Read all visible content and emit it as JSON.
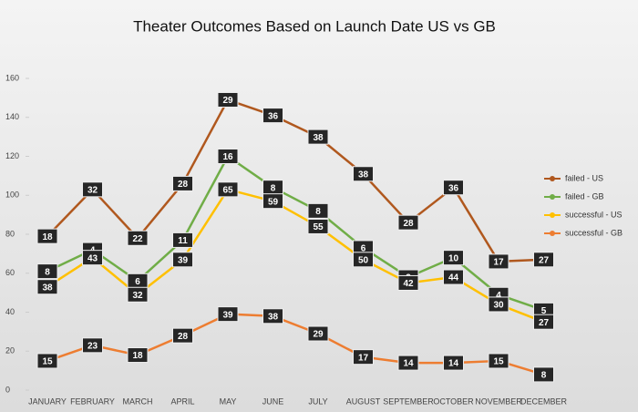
{
  "chart_data": {
    "type": "line",
    "title": "Theater Outcomes Based on Launch Date US vs GB",
    "categories": [
      "JANUARY",
      "FEBRUARY",
      "MARCH",
      "APRIL",
      "MAY",
      "JUNE",
      "JULY",
      "AUGUST",
      "SEPTEMBER",
      "OCTOBER",
      "NOVEMBER",
      "DECEMBER"
    ],
    "ylim": [
      0,
      160
    ],
    "yticks": [
      0,
      20,
      40,
      60,
      80,
      100,
      120,
      140,
      160
    ],
    "legend": "right",
    "series": [
      {
        "name": "failed - US",
        "color": "#b0581e",
        "values": [
          79,
          103,
          78,
          106,
          149,
          141,
          130,
          111,
          86,
          104,
          66,
          67
        ],
        "data_labels": [
          18,
          32,
          22,
          28,
          29,
          36,
          38,
          38,
          28,
          36,
          17,
          27
        ]
      },
      {
        "name": "failed - GB",
        "color": "#70ad47",
        "values": [
          61,
          72,
          56,
          77,
          120,
          104,
          92,
          73,
          58,
          68,
          49,
          41
        ],
        "data_labels": [
          8,
          4,
          6,
          11,
          16,
          8,
          8,
          6,
          3,
          10,
          4,
          5
        ]
      },
      {
        "name": "successful - US",
        "color": "#ffc000",
        "values": [
          53,
          68,
          49,
          67,
          103,
          97,
          84,
          67,
          55,
          58,
          44,
          35
        ],
        "data_labels": [
          38,
          43,
          32,
          39,
          65,
          59,
          55,
          50,
          42,
          44,
          30,
          27
        ]
      },
      {
        "name": "successful - GB",
        "color": "#ed7d31",
        "values": [
          15,
          23,
          18,
          28,
          39,
          38,
          29,
          17,
          14,
          14,
          15,
          8
        ],
        "data_labels": [
          15,
          23,
          18,
          28,
          39,
          38,
          29,
          17,
          14,
          14,
          15,
          8
        ]
      }
    ]
  }
}
